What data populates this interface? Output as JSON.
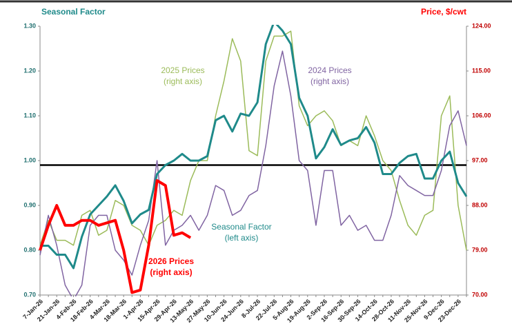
{
  "chart_data": {
    "type": "line",
    "title": "Seasonal Factor",
    "y2_title": "Price, $/cwt",
    "categories": [
      "7-Jan-26",
      null,
      "21-Jan-26",
      null,
      "4-Feb-26",
      null,
      "18-Feb-26",
      null,
      "4-Mar-26",
      null,
      "18-Mar-26",
      null,
      "1-Apr-26",
      null,
      "15-Apr-26",
      null,
      "29-Apr-26",
      null,
      "13-May-26",
      null,
      "27-May-26",
      null,
      "10-Jun-26",
      null,
      "24-Jun-26",
      null,
      "8-Jul-26",
      null,
      "22-Jul-26",
      null,
      "5-Aug-26",
      null,
      "19-Aug-26",
      null,
      "2-Sep-26",
      null,
      "16-Sep-26",
      null,
      "30-Sep-26",
      null,
      "14-Oct-26",
      null,
      "28-Oct-26",
      null,
      "11-Nov-26",
      null,
      "25-Nov-26",
      null,
      "9-Dec-26",
      null,
      "23-Dec-26",
      null
    ],
    "series": [
      {
        "name": "2025 Prices",
        "note": "(right axis)",
        "color": "#9bbb59",
        "axis": "y2",
        "values": [
          80,
          85,
          81,
          81,
          80,
          86,
          87,
          82,
          83,
          89,
          88,
          84,
          83,
          80,
          84,
          85,
          87,
          86,
          93,
          97,
          97,
          106,
          113,
          121.5,
          117,
          99,
          98,
          117,
          122,
          122,
          123,
          108,
          104,
          106,
          107,
          105,
          100,
          101,
          100,
          106,
          102,
          97,
          95,
          89,
          84,
          82,
          86,
          87,
          106,
          110,
          88,
          79
        ]
      },
      {
        "name": "2024 Prices",
        "note": "(right axis)",
        "color": "#8064a2",
        "axis": "y2",
        "values": [
          78,
          86,
          80,
          72,
          69,
          72,
          84,
          86,
          86,
          79,
          77,
          74,
          80,
          85,
          97,
          80,
          83,
          84,
          86,
          83,
          86,
          92,
          91,
          86,
          87,
          90,
          91,
          100,
          112,
          119,
          110,
          97,
          95,
          84,
          95,
          95,
          84,
          86,
          83,
          84,
          81,
          81,
          86,
          94,
          92,
          91,
          90,
          90,
          95,
          104,
          107,
          100
        ]
      },
      {
        "name": "Seasonal Factor",
        "note": "(left axis)",
        "color": "#1f8a8a",
        "axis": "y",
        "values": [
          0.81,
          0.81,
          0.79,
          0.79,
          0.76,
          0.83,
          0.88,
          0.9,
          0.92,
          0.945,
          0.91,
          0.86,
          0.88,
          0.89,
          0.97,
          0.99,
          1.0,
          1.015,
          1.0,
          1.0,
          1.01,
          1.09,
          1.1,
          1.065,
          1.105,
          1.1,
          1.13,
          1.26,
          1.31,
          1.29,
          1.26,
          1.14,
          1.1,
          1.005,
          1.03,
          1.07,
          1.035,
          1.045,
          1.05,
          1.075,
          1.04,
          0.97,
          0.97,
          0.995,
          1.01,
          1.015,
          0.96,
          0.96,
          1.0,
          1.02,
          0.95,
          0.92
        ]
      },
      {
        "name": "2026 Prices",
        "note": "(right axis)",
        "color": "#ff0000",
        "axis": "y2",
        "values": [
          79,
          84,
          88,
          84,
          84,
          85,
          85,
          84,
          84.5,
          85,
          79,
          70.5,
          71,
          80,
          93,
          92,
          82,
          82.5,
          81.5,
          null,
          null,
          null,
          null,
          null,
          null,
          null,
          null,
          null,
          null,
          null,
          null,
          null,
          null,
          null,
          null,
          null,
          null,
          null,
          null,
          null,
          null,
          null,
          null,
          null,
          null,
          null,
          null,
          null,
          null,
          null,
          null,
          null
        ]
      }
    ],
    "hline": 0.99,
    "ylim": [
      0.7,
      1.3
    ],
    "yticks": [
      {
        "value": 0.7,
        "label": "0.70"
      },
      {
        "value": 0.8,
        "label": "0.80"
      },
      {
        "value": 0.9,
        "label": "0.90"
      },
      {
        "value": 1.0,
        "label": "1.00"
      },
      {
        "value": 1.1,
        "label": "1.10"
      },
      {
        "value": 1.2,
        "label": "1.20"
      },
      {
        "value": 1.3,
        "label": "1.30"
      }
    ],
    "y2lim": [
      70,
      124
    ],
    "y2ticks": [
      {
        "value": 70,
        "label": "70.00"
      },
      {
        "value": 79,
        "label": "79.00"
      },
      {
        "value": 88,
        "label": "88.00"
      },
      {
        "value": 97,
        "label": "97.00"
      },
      {
        "value": 106,
        "label": "106.00"
      },
      {
        "value": 115,
        "label": "115.00"
      },
      {
        "value": 124,
        "label": "124.00"
      }
    ]
  }
}
